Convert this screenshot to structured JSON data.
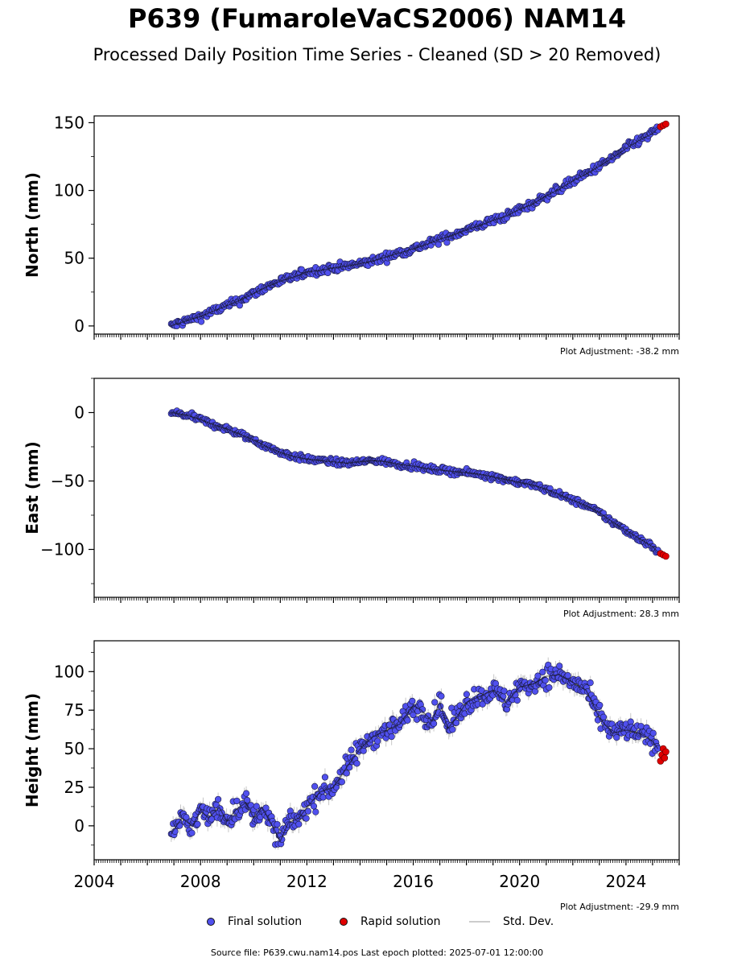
{
  "title": "P639 (FumaroleVaCS2006) NAM14",
  "subtitle": "Processed Daily Position Time Series - Cleaned (SD > 20 Removed)",
  "colors": {
    "final": "#5050ee",
    "final_edge": "#1a1a40",
    "rapid": "#e00000",
    "std_dev": "#c8c8c8",
    "trend": "#111111"
  },
  "legend": {
    "final": "Final solution",
    "rapid": "Rapid solution",
    "std": "Std. Dev."
  },
  "source_text": "Source file: P639.cwu.nam14.pos  Last epoch plotted: 2025-07-01 12:00:00",
  "chart_data": [
    {
      "type": "scatter",
      "panel": "north",
      "ylabel": "North (mm)",
      "ylim": [
        -6,
        155
      ],
      "yticks": [
        0,
        50,
        100,
        150
      ],
      "xlim": [
        2004.0,
        2026.0
      ],
      "adjustment": "Plot Adjustment: -38.2 mm",
      "final_series": {
        "name": "Final solution",
        "x": [
          2006.9,
          2007.5,
          2008.0,
          2008.5,
          2009.0,
          2009.5,
          2010.0,
          2010.5,
          2011.0,
          2011.5,
          2012.0,
          2012.5,
          2013.0,
          2013.5,
          2014.0,
          2014.5,
          2015.0,
          2015.5,
          2016.0,
          2016.5,
          2017.0,
          2017.5,
          2018.0,
          2018.5,
          2019.0,
          2019.5,
          2020.0,
          2020.5,
          2021.0,
          2021.5,
          2022.0,
          2022.5,
          2023.0,
          2023.5,
          2024.0,
          2024.5,
          2025.0,
          2025.2
        ],
        "y": [
          0,
          4,
          7,
          11,
          15,
          19,
          24,
          29,
          33,
          36,
          40,
          41,
          43,
          44,
          46,
          48,
          51,
          54,
          57,
          60,
          64,
          67,
          71,
          74,
          78,
          81,
          86,
          90,
          96,
          101,
          107,
          112,
          118,
          124,
          131,
          137,
          142,
          146
        ]
      },
      "rapid_series": {
        "name": "Rapid solution",
        "x": [
          2025.3,
          2025.4,
          2025.5
        ],
        "y": [
          147,
          148,
          149
        ]
      },
      "std_dev": 1.5,
      "scatter": 2.2
    },
    {
      "type": "scatter",
      "panel": "east",
      "ylabel": "East (mm)",
      "ylim": [
        -135,
        25
      ],
      "yticks": [
        0,
        -50,
        -100
      ],
      "xlim": [
        2004.0,
        2026.0
      ],
      "adjustment": "Plot Adjustment: 28.3 mm",
      "final_series": {
        "name": "Final solution",
        "x": [
          2006.9,
          2007.5,
          2008.0,
          2008.5,
          2009.0,
          2009.5,
          2010.0,
          2010.5,
          2011.0,
          2011.5,
          2012.0,
          2012.5,
          2013.0,
          2013.5,
          2014.0,
          2014.5,
          2015.0,
          2015.5,
          2016.0,
          2016.5,
          2017.0,
          2017.5,
          2018.0,
          2018.5,
          2019.0,
          2019.5,
          2020.0,
          2020.5,
          2021.0,
          2021.5,
          2022.0,
          2022.5,
          2023.0,
          2023.5,
          2024.0,
          2024.5,
          2025.0,
          2025.2
        ],
        "y": [
          0,
          -2,
          -5,
          -9,
          -12,
          -16,
          -20,
          -25,
          -29,
          -32,
          -34,
          -35,
          -36,
          -37,
          -36,
          -35,
          -36,
          -38,
          -39,
          -41,
          -42,
          -43,
          -44,
          -45,
          -47,
          -49,
          -51,
          -53,
          -56,
          -60,
          -64,
          -68,
          -73,
          -80,
          -86,
          -92,
          -98,
          -102
        ]
      },
      "rapid_series": {
        "name": "Rapid solution",
        "x": [
          2025.3,
          2025.4,
          2025.5
        ],
        "y": [
          -103,
          -104,
          -105
        ]
      },
      "std_dev": 1.5,
      "scatter": 1.6
    },
    {
      "type": "scatter",
      "panel": "height",
      "ylabel": "Height (mm)",
      "ylim": [
        -22,
        120
      ],
      "yticks": [
        0,
        25,
        50,
        75,
        100
      ],
      "xlim": [
        2004.0,
        2026.0
      ],
      "xticks": [
        2004,
        2008,
        2012,
        2016,
        2020,
        2024
      ],
      "adjustment": "Plot Adjustment: -29.9 mm",
      "final_series": {
        "name": "Final solution",
        "x": [
          2006.9,
          2007.3,
          2007.7,
          2008.0,
          2008.3,
          2008.7,
          2009.0,
          2009.3,
          2009.7,
          2010.0,
          2010.3,
          2010.7,
          2011.0,
          2011.3,
          2011.7,
          2012.0,
          2012.5,
          2013.0,
          2013.5,
          2014.0,
          2014.5,
          2015.0,
          2015.5,
          2016.0,
          2016.3,
          2016.7,
          2017.0,
          2017.3,
          2017.7,
          2018.0,
          2018.5,
          2019.0,
          2019.5,
          2020.0,
          2020.5,
          2021.0,
          2021.5,
          2022.0,
          2022.5,
          2023.0,
          2023.5,
          2024.0,
          2024.5,
          2025.0,
          2025.2
        ],
        "y": [
          -5,
          5,
          0,
          10,
          5,
          12,
          3,
          10,
          15,
          5,
          12,
          0,
          -10,
          2,
          5,
          12,
          22,
          25,
          38,
          50,
          58,
          62,
          66,
          78,
          75,
          68,
          80,
          63,
          72,
          80,
          84,
          88,
          80,
          90,
          92,
          97,
          98,
          93,
          88,
          70,
          60,
          62,
          60,
          55,
          50
        ]
      },
      "rapid_series": {
        "name": "Rapid solution",
        "x": [
          2025.3,
          2025.35,
          2025.4,
          2025.45,
          2025.5
        ],
        "y": [
          42,
          46,
          50,
          44,
          48
        ]
      },
      "std_dev": 4,
      "scatter": 5
    }
  ]
}
